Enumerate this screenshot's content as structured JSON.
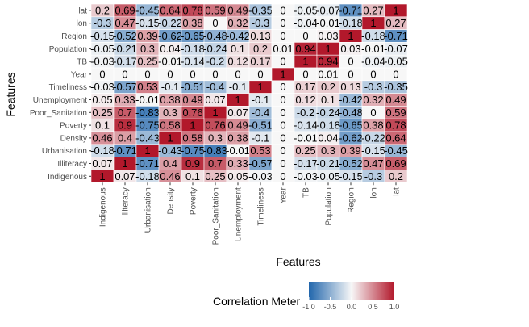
{
  "chart_data": {
    "type": "heatmap",
    "title": "",
    "xlabel": "Features",
    "ylabel": "Features",
    "x_categories": [
      "Indigenous",
      "Illiteracy",
      "Urbanisation",
      "Density",
      "Poverty",
      "Poor_Sanitation",
      "Unemployment",
      "Timeliness",
      "Year",
      "TB",
      "Population",
      "Region",
      "lon",
      "lat"
    ],
    "y_categories_top_to_bottom": [
      "lat",
      "lon",
      "Region",
      "Population",
      "TB",
      "Year",
      "Timeliness",
      "Unemployment",
      "Poor_Sanitation",
      "Poverty",
      "Density",
      "Urbanisation",
      "Illiteracy",
      "Indigenous"
    ],
    "values": [
      [
        0.2,
        0.69,
        -0.45,
        0.64,
        0.78,
        0.59,
        0.49,
        -0.35,
        0,
        -0.05,
        -0.07,
        -0.71,
        0.27,
        1
      ],
      [
        -0.3,
        0.47,
        -0.15,
        -0.22,
        0.38,
        0,
        0.32,
        -0.3,
        0,
        -0.04,
        -0.01,
        -0.18,
        1,
        0.27
      ],
      [
        -0.15,
        -0.52,
        0.39,
        -0.62,
        -0.65,
        -0.48,
        -0.42,
        0.13,
        0,
        0,
        0.03,
        1,
        -0.18,
        -0.71
      ],
      [
        -0.05,
        -0.21,
        0.3,
        0.04,
        -0.18,
        -0.24,
        0.1,
        0.2,
        0.01,
        0.94,
        1,
        0.03,
        -0.01,
        -0.07
      ],
      [
        -0.03,
        -0.17,
        0.25,
        -0.01,
        -0.14,
        -0.2,
        0.12,
        0.17,
        0,
        1,
        0.94,
        0,
        -0.04,
        -0.05
      ],
      [
        0,
        0,
        0,
        0,
        0,
        0,
        0,
        0,
        1,
        0,
        0.01,
        0,
        0,
        0
      ],
      [
        -0.03,
        -0.57,
        0.53,
        -0.1,
        -0.51,
        -0.4,
        -0.1,
        1,
        0,
        0.17,
        0.2,
        0.13,
        -0.3,
        -0.35
      ],
      [
        0.05,
        0.33,
        -0.01,
        0.38,
        0.49,
        0.07,
        1,
        -0.1,
        0,
        0.12,
        0.1,
        -0.42,
        0.32,
        0.49
      ],
      [
        0.25,
        0.7,
        -0.83,
        0.3,
        0.76,
        1,
        0.07,
        -0.4,
        0,
        -0.2,
        -0.24,
        -0.48,
        0,
        0.59
      ],
      [
        0.1,
        0.9,
        -0.75,
        0.58,
        1,
        0.76,
        0.49,
        -0.51,
        0,
        -0.14,
        -0.18,
        -0.65,
        0.38,
        0.78
      ],
      [
        0.46,
        0.4,
        -0.43,
        1,
        0.58,
        0.3,
        0.38,
        -0.1,
        0,
        -0.01,
        0.04,
        -0.62,
        -0.22,
        0.64
      ],
      [
        -0.18,
        -0.71,
        1,
        -0.43,
        -0.75,
        -0.83,
        -0.01,
        0.53,
        0,
        0.25,
        0.3,
        0.39,
        -0.15,
        -0.45
      ],
      [
        0.07,
        1,
        -0.71,
        0.4,
        0.9,
        0.7,
        0.33,
        -0.57,
        0,
        -0.17,
        -0.21,
        -0.52,
        0.47,
        0.69
      ],
      [
        1,
        0.07,
        -0.18,
        0.46,
        0.1,
        0.25,
        0.05,
        -0.03,
        0,
        -0.03,
        -0.05,
        -0.15,
        -0.3,
        0.2
      ]
    ],
    "value_range": [
      -1,
      1
    ],
    "legend": {
      "title": "Correlation Meter",
      "ticks": [
        "-1.0",
        "-0.5",
        "0.0",
        "0.5",
        "1.0"
      ],
      "tick_values": [
        -1,
        -0.5,
        0,
        0.5,
        1
      ],
      "position": "bottom"
    },
    "colors": {
      "negative": "#2166ac",
      "neutral": "#f7f7f7",
      "positive": "#b2182b",
      "grid_background": "#ebebeb",
      "gridline": "#ffffff",
      "tick_text": "#4d4d4d",
      "label_text": "#000000"
    }
  }
}
